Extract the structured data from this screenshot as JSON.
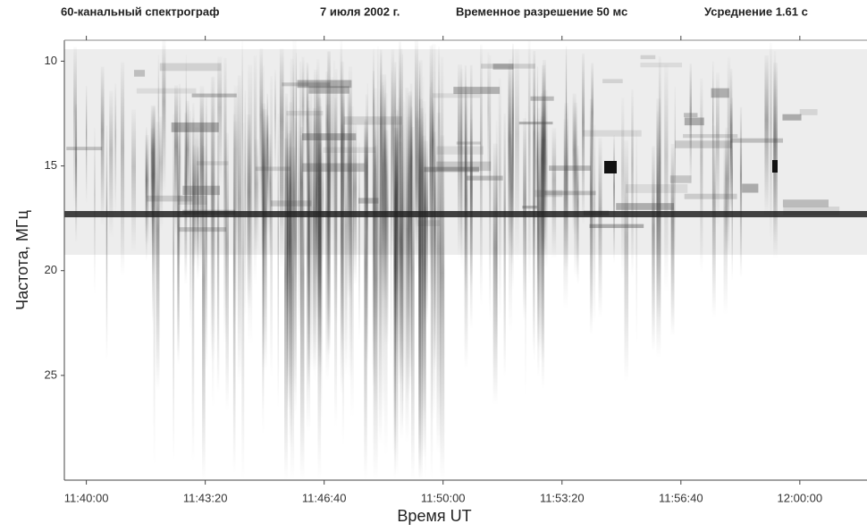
{
  "chart_data": {
    "type": "spectrogram",
    "header": [
      "60-канальный спектрограф",
      "7 июля 2002 г.",
      "Временное разрешение 50 мс",
      "Усреднение 1.61 с"
    ],
    "x_label": "Время   UT",
    "y_label": "Частота, МГц",
    "xlim": [
      41963,
      43313
    ],
    "xticks": [
      {
        "value": 42000,
        "label": "11:40:00"
      },
      {
        "value": 42200,
        "label": "11:43:20"
      },
      {
        "value": 42400,
        "label": "11:46:40"
      },
      {
        "value": 42600,
        "label": "11:50:00"
      },
      {
        "value": 42800,
        "label": "11:53:20"
      },
      {
        "value": 43000,
        "label": "11:56:40"
      },
      {
        "value": 43200,
        "label": "12:00:00"
      }
    ],
    "ylim": [
      30,
      9
    ],
    "yticks": [
      10,
      15,
      20,
      25
    ]
  }
}
